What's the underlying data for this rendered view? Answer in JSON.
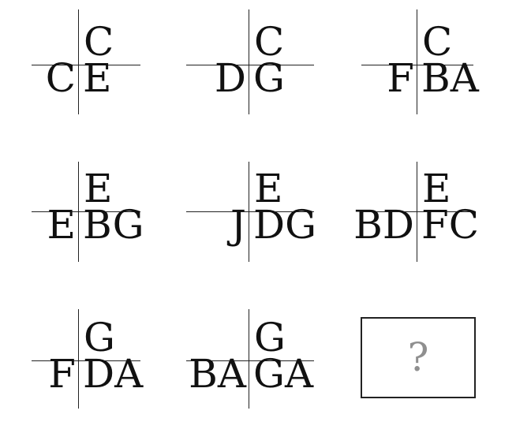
{
  "cells": [
    {
      "top": "C",
      "left": "C",
      "right": "E"
    },
    {
      "top": "C",
      "left": "D",
      "right": "G"
    },
    {
      "top": "C",
      "left": "F",
      "right": "BA"
    },
    {
      "top": "E",
      "left": "E",
      "right": "BG"
    },
    {
      "top": "E",
      "left": "J",
      "right": "DG"
    },
    {
      "top": "E",
      "left": "BD",
      "right": "FC"
    },
    {
      "top": "G",
      "left": "F",
      "right": "DA"
    },
    {
      "top": "G",
      "left": "BA",
      "right": "GA"
    }
  ],
  "answer_box": {
    "label": "?"
  }
}
